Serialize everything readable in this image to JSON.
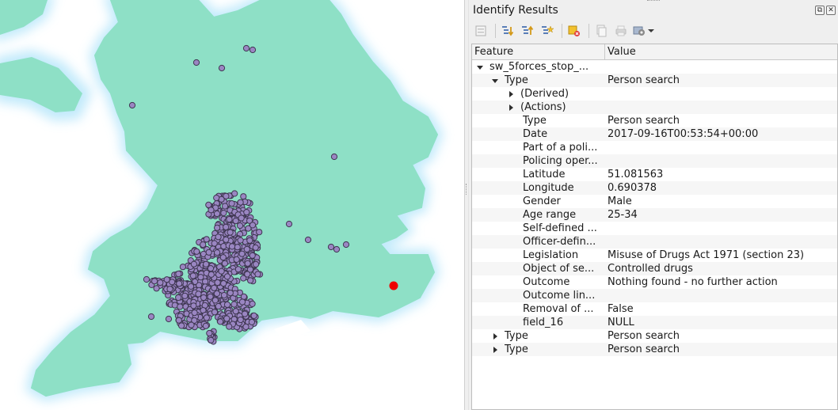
{
  "panel": {
    "title": "Identify Results",
    "buttons": {
      "float": "⧉",
      "close": "✕"
    },
    "toolbar": [
      {
        "name": "expand-new-results-icon"
      },
      {
        "name": "expand-tree-icon"
      },
      {
        "name": "collapse-tree-icon"
      },
      {
        "name": "expand-all-icon"
      },
      {
        "name": "clear-results-icon"
      },
      {
        "name": "copy-feature-icon"
      },
      {
        "name": "print-icon"
      },
      {
        "name": "identify-settings-icon"
      }
    ]
  },
  "table": {
    "columns": {
      "feature": "Feature",
      "value": "Value"
    },
    "layer": "sw_5forces_stop_...",
    "type_label": "Type",
    "type_value": "Person search",
    "derived": "(Derived)",
    "actions": "(Actions)",
    "attributes": [
      {
        "field": "Type",
        "value": "Person search"
      },
      {
        "field": "Date",
        "value": "2017-09-16T00:53:54+00:00"
      },
      {
        "field": "Part of a poli...",
        "value": ""
      },
      {
        "field": "Policing oper...",
        "value": ""
      },
      {
        "field": "Latitude",
        "value": "51.081563"
      },
      {
        "field": "Longitude",
        "value": "0.690378"
      },
      {
        "field": "Gender",
        "value": "Male"
      },
      {
        "field": "Age range",
        "value": "25-34"
      },
      {
        "field": "Self-defined ...",
        "value": ""
      },
      {
        "field": "Officer-defin...",
        "value": ""
      },
      {
        "field": "Legislation",
        "value": "Misuse of Drugs Act 1971 (section 23)"
      },
      {
        "field": "Object of se...",
        "value": "Controlled drugs"
      },
      {
        "field": "Outcome",
        "value": "Nothing found - no further action"
      },
      {
        "field": "Outcome lin...",
        "value": ""
      },
      {
        "field": "Removal of ...",
        "value": "False"
      },
      {
        "field": "field_16",
        "value": "NULL"
      }
    ],
    "collapsed": [
      {
        "field": "Type",
        "value": "Person search"
      },
      {
        "field": "Type",
        "value": "Person search"
      }
    ]
  },
  "map": {
    "land_color": "#8ee0c6",
    "halo_color": "#c6ecfb",
    "point_fill": "#9a86c2",
    "point_stroke": "#3e3650",
    "highlight_color": "#ee0000"
  }
}
